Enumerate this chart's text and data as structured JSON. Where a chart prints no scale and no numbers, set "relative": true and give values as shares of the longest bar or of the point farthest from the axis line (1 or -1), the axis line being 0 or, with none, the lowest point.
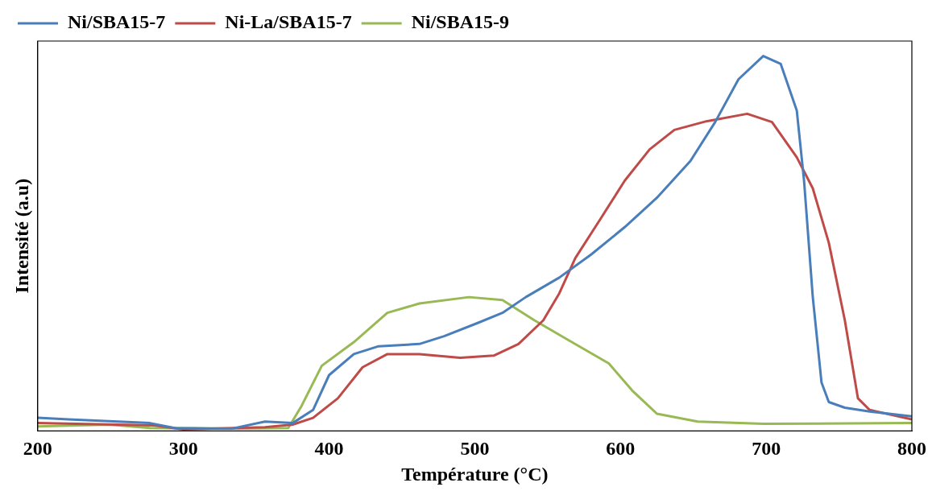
{
  "chart_data": {
    "type": "line",
    "xlabel": "Température (°C)",
    "ylabel": "Intensité (a.u)",
    "relative": true,
    "xlim": [
      200,
      800
    ],
    "xticks": [
      200,
      300,
      400,
      500,
      600,
      700,
      800
    ],
    "grid": false,
    "legend": "top left",
    "marker": "none",
    "line_style": "solid",
    "series": [
      {
        "name": "Ni/SBA15-7",
        "color": "#4a7ebb",
        "x": [
          200,
          221,
          277,
          294,
          333,
          356,
          375,
          389,
          400,
          417,
          434,
          462,
          479,
          502,
          519,
          535,
          558,
          580,
          603,
          625,
          648,
          665,
          681,
          698,
          710,
          721,
          726,
          732,
          738,
          743,
          754,
          771,
          800
        ],
        "values": [
          0.035,
          0.031,
          0.021,
          0.008,
          0.006,
          0.025,
          0.021,
          0.056,
          0.149,
          0.205,
          0.226,
          0.232,
          0.253,
          0.288,
          0.315,
          0.357,
          0.409,
          0.471,
          0.544,
          0.622,
          0.72,
          0.824,
          0.938,
          1.0,
          0.979,
          0.855,
          0.668,
          0.357,
          0.129,
          0.077,
          0.062,
          0.052,
          0.039
        ]
      },
      {
        "name": "Ni-La/SBA15-7",
        "color": "#be4b48",
        "x": [
          200,
          280,
          300,
          356,
          375,
          389,
          406,
          423,
          440,
          462,
          490,
          513,
          530,
          547,
          558,
          569,
          586,
          603,
          620,
          637,
          659,
          687,
          704,
          721,
          732,
          743,
          754,
          763,
          771,
          800
        ],
        "values": [
          0.021,
          0.015,
          0.004,
          0.01,
          0.017,
          0.035,
          0.087,
          0.17,
          0.205,
          0.205,
          0.195,
          0.201,
          0.232,
          0.295,
          0.367,
          0.461,
          0.564,
          0.668,
          0.751,
          0.803,
          0.826,
          0.846,
          0.824,
          0.73,
          0.647,
          0.502,
          0.295,
          0.087,
          0.056,
          0.031
        ]
      },
      {
        "name": "Ni/SBA15-9",
        "color": "#98b954",
        "x": [
          200,
          249,
          277,
          333,
          372,
          381,
          395,
          417,
          440,
          462,
          496,
          519,
          541,
          564,
          592,
          608,
          625,
          653,
          698,
          800
        ],
        "values": [
          0.012,
          0.017,
          0.008,
          0.006,
          0.008,
          0.066,
          0.174,
          0.237,
          0.315,
          0.34,
          0.357,
          0.349,
          0.295,
          0.243,
          0.18,
          0.108,
          0.046,
          0.025,
          0.019,
          0.021
        ]
      }
    ]
  }
}
